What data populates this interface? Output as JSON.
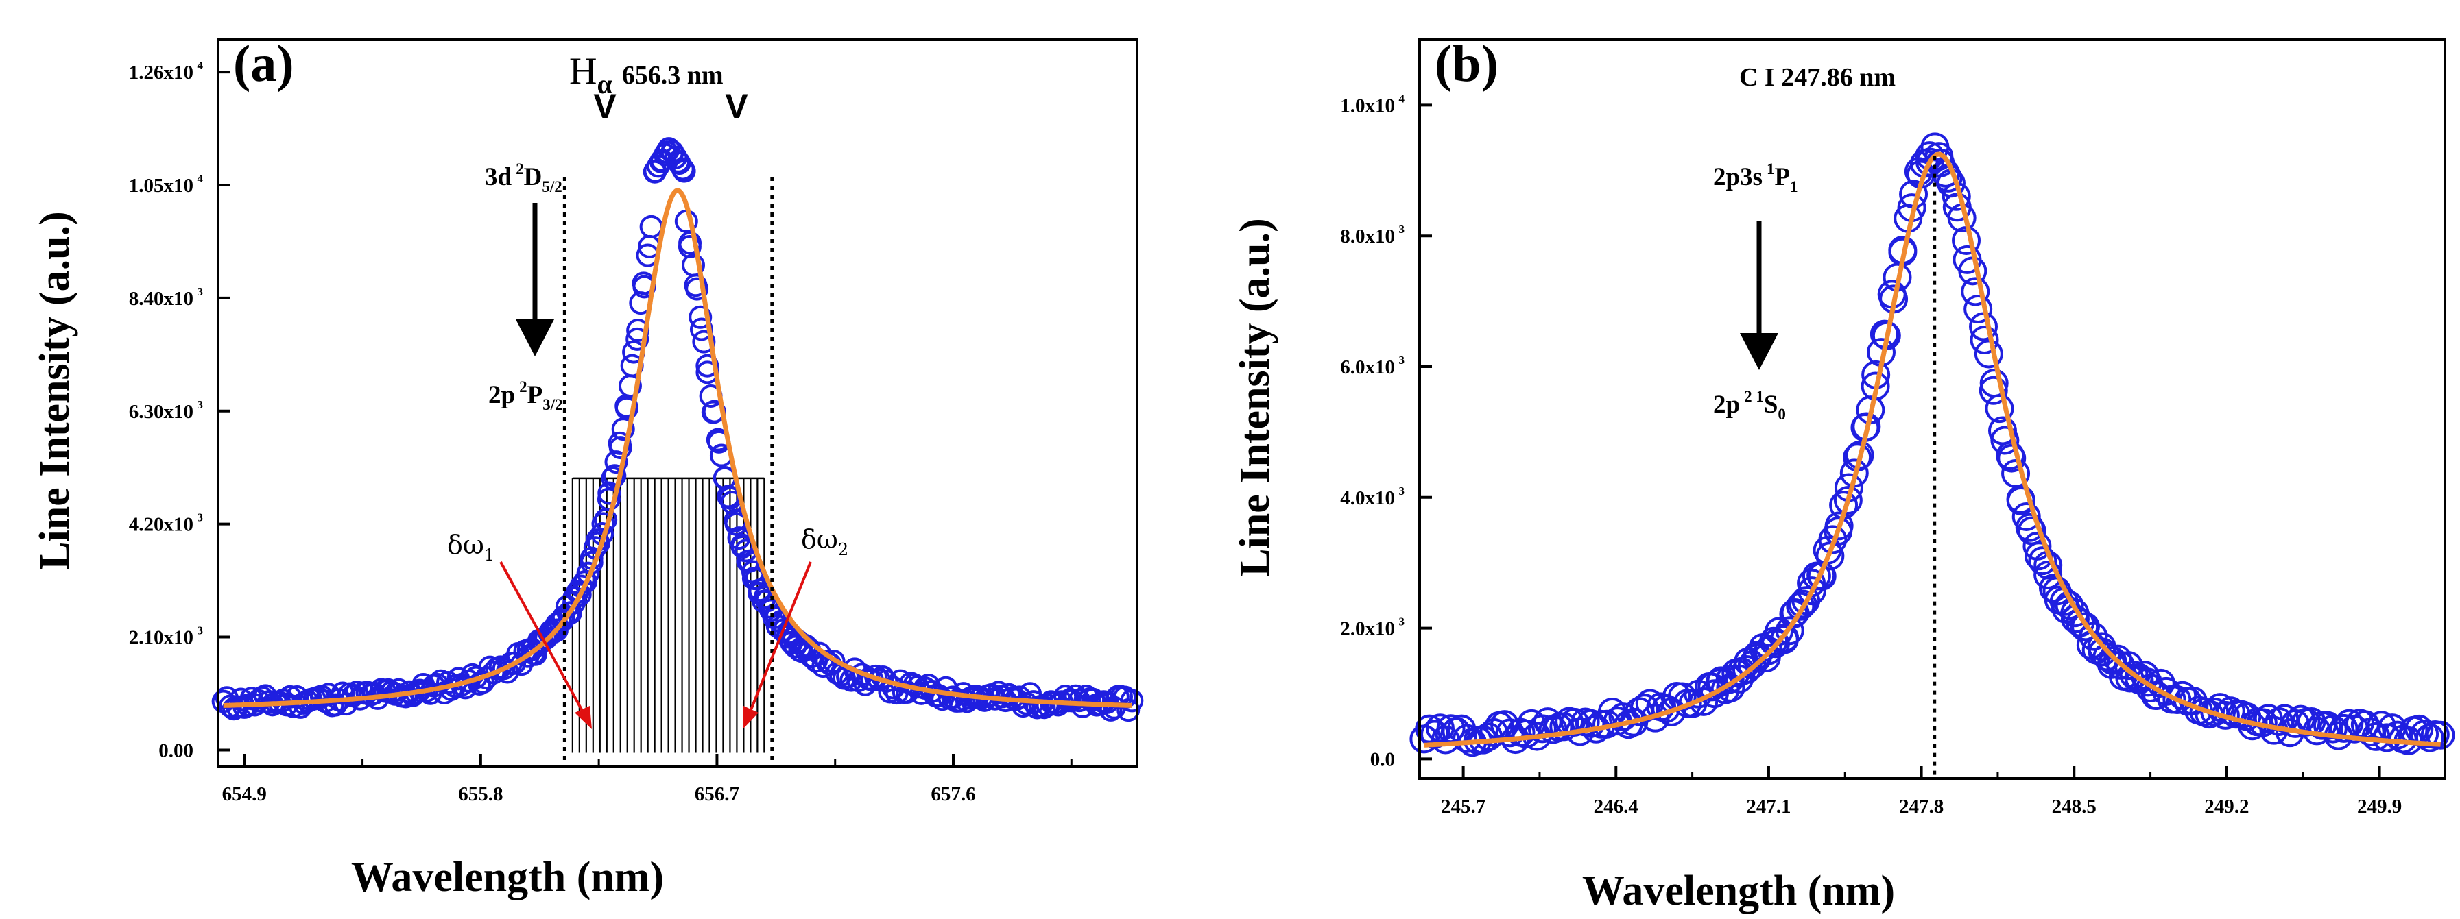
{
  "chart_data": [
    {
      "type": "scatter",
      "panel_label": "(a)",
      "xlabel": "Wavelength (nm)",
      "ylabel": "Line Intensity (a.u.)",
      "xlim": [
        654.8,
        658.3
      ],
      "ylim": [
        -300,
        13200
      ],
      "x_ticks": [
        654.9,
        655.8,
        656.7,
        657.6
      ],
      "y_ticks": [
        0,
        2100,
        4200,
        6300,
        8400,
        10500,
        12600
      ],
      "y_tick_labels": [
        "0.00",
        "2.10x10",
        "4.20x10",
        "6.30x10",
        "8.40x10",
        "1.05x10",
        "1.26x10"
      ],
      "y_tick_exponent": "3",
      "y_tick_exponents": [
        "",
        "3",
        "3",
        "3",
        "3",
        "4",
        "4"
      ],
      "line_title": {
        "species": "H",
        "subscript": "α",
        "wavelength": "656.3 nm"
      },
      "transition_upper": {
        "base": "3d",
        "sup": "2",
        "term": "D",
        "sub": "5/2"
      },
      "transition_lower": {
        "base": "2p",
        "sup": "2",
        "term": "P",
        "sub": "3/2"
      },
      "width_labels": [
        {
          "base": "δω",
          "sub": "1"
        },
        {
          "base": "δω",
          "sub": "2"
        }
      ],
      "guide_lines_x": [
        656.12,
        656.91
      ],
      "shaded_region": {
        "x": [
          656.15,
          656.88
        ],
        "y_top": 5050
      },
      "series": [
        {
          "role": "data",
          "marker": "open-circle",
          "color": "#1f1fe0",
          "model": "lorentzian",
          "center": 656.52,
          "amplitude": 10300,
          "hwhm": 0.18,
          "baseline": 750,
          "peak_x": 656.52,
          "peak_y": 11200
        },
        {
          "role": "fit",
          "style": "line",
          "color": "#f08a30",
          "model": "lorentzian",
          "center": 656.55,
          "amplitude": 9700,
          "hwhm": 0.2,
          "baseline": 700
        }
      ]
    },
    {
      "type": "scatter",
      "panel_label": "(b)",
      "xlabel": "Wavelength (nm)",
      "ylabel": "Line Intensity (a.u.)",
      "xlim": [
        245.5,
        250.2
      ],
      "ylim": [
        -300,
        11000
      ],
      "x_ticks": [
        245.7,
        246.4,
        247.1,
        247.8,
        248.5,
        249.2,
        249.9
      ],
      "y_ticks": [
        0,
        2000,
        4000,
        6000,
        8000,
        10000
      ],
      "y_tick_labels": [
        "0.0",
        "2.0x10",
        "4.0x10",
        "6.0x10",
        "8.0x10",
        "1.0x10"
      ],
      "y_tick_exponents": [
        "",
        "3",
        "3",
        "3",
        "3",
        "4"
      ],
      "line_title": "C I 247.86 nm",
      "transition_upper": {
        "base": "2p3s",
        "sup": "1",
        "term": "P",
        "sub": "1"
      },
      "transition_lower": {
        "base": "2p",
        "sup": "2 1",
        "term": "S",
        "sub": "0"
      },
      "guide_lines_x": [
        247.86
      ],
      "series": [
        {
          "role": "data",
          "marker": "open-circle",
          "color": "#1f1fe0",
          "model": "lorentzian",
          "center": 247.86,
          "amplitude": 9100,
          "hwhm": 0.34,
          "baseline": 150
        },
        {
          "role": "fit",
          "style": "line",
          "color": "#f08a30",
          "model": "lorentzian",
          "center": 247.88,
          "amplitude": 9250,
          "hwhm": 0.36,
          "baseline": 0
        }
      ]
    }
  ],
  "colors": {
    "data": "#1f1fe0",
    "fit": "#f08a30",
    "arrow": "#e01010",
    "axis": "#000000"
  }
}
